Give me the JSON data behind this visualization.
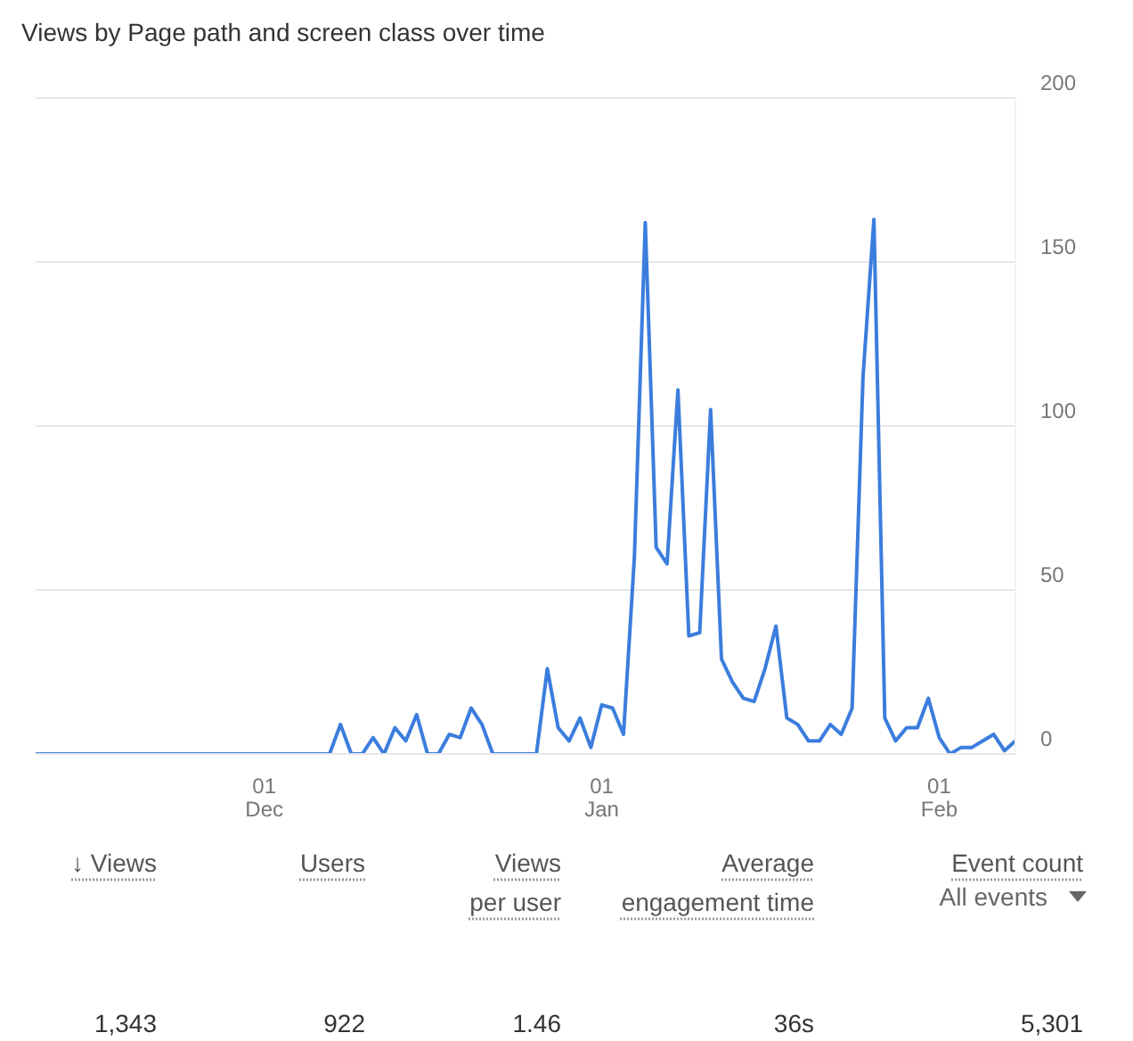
{
  "chart_data": {
    "type": "line",
    "title": "Views by Page path and screen class over time",
    "categories": [
      null,
      null,
      null,
      null,
      null,
      null,
      null,
      null,
      null,
      null,
      null,
      null,
      null,
      null,
      null,
      null,
      null,
      null,
      null,
      null,
      null,
      "01 Dec",
      null,
      null,
      null,
      null,
      null,
      null,
      null,
      null,
      null,
      null,
      null,
      null,
      null,
      null,
      null,
      null,
      null,
      null,
      null,
      null,
      null,
      null,
      null,
      null,
      null,
      null,
      null,
      null,
      null,
      null,
      "01 Jan",
      null,
      null,
      null,
      null,
      null,
      null,
      null,
      null,
      null,
      null,
      null,
      null,
      null,
      null,
      null,
      null,
      null,
      null,
      null,
      null,
      null,
      null,
      null,
      null,
      null,
      null,
      null,
      null,
      null,
      null,
      "01 Feb",
      null,
      null,
      null,
      null,
      null,
      null,
      null
    ],
    "series": [
      {
        "color": "#3b7ddd",
        "values": [
          0,
          0,
          0,
          0,
          0,
          0,
          0,
          0,
          0,
          0,
          0,
          0,
          0,
          0,
          0,
          0,
          0,
          0,
          0,
          0,
          0,
          0,
          0,
          0,
          0,
          0,
          0,
          0,
          9,
          0,
          0,
          5,
          0,
          8,
          4,
          12,
          0,
          0,
          6,
          5,
          14,
          9,
          0,
          0,
          0,
          0,
          0,
          26,
          8,
          4,
          11,
          2,
          15,
          14,
          6,
          60,
          162,
          63,
          58,
          111,
          36,
          37,
          105,
          29,
          22,
          17,
          16,
          26,
          39,
          11,
          9,
          4,
          4,
          9,
          6,
          14,
          115,
          163,
          11,
          4,
          8,
          8,
          17,
          5,
          0,
          2,
          2,
          4,
          6,
          1,
          4
        ]
      }
    ],
    "ylim": [
      0,
      200
    ],
    "yticks": [
      0,
      50,
      100,
      150,
      200
    ],
    "grid": "y",
    "marker": "none",
    "line_style": "solid",
    "annotations": [
      "↓ Views",
      "Users",
      "Views per user",
      "Average engagement time",
      "Event count",
      "All events",
      "1,343",
      "922",
      "1.46",
      "36s",
      "5,301"
    ]
  }
}
